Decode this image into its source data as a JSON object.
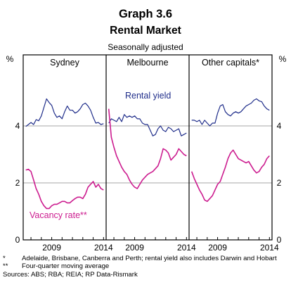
{
  "chart_data": {
    "type": "line",
    "title": "Graph 3.6",
    "subtitle": "Rental Market",
    "note": "Seasonally adjusted",
    "ylabel_left": "%",
    "ylabel_right": "%",
    "ylim": [
      0,
      6
    ],
    "yticks": [
      0,
      2,
      4
    ],
    "grid": true,
    "xlim": [
      2006.25,
      2014.25
    ],
    "xticks": [
      2009,
      2014
    ],
    "xtick_labels": [
      "2009",
      "2014"
    ],
    "panels": [
      {
        "name": "Sydney",
        "series": [
          {
            "name": "Rental yield",
            "color": "#1f2d8a",
            "x": [
              2006.5,
              2006.75,
              2007,
              2007.25,
              2007.5,
              2007.75,
              2008,
              2008.25,
              2008.5,
              2008.75,
              2009,
              2009.25,
              2009.5,
              2009.75,
              2010,
              2010.25,
              2010.5,
              2010.75,
              2011,
              2011.25,
              2011.5,
              2011.75,
              2012,
              2012.25,
              2012.5,
              2012.75,
              2013,
              2013.25,
              2013.5,
              2013.75,
              2014
            ],
            "values": [
              3.98,
              4.05,
              4.12,
              4.05,
              4.22,
              4.18,
              4.35,
              4.65,
              4.95,
              4.82,
              4.72,
              4.45,
              4.3,
              4.35,
              4.25,
              4.5,
              4.7,
              4.55,
              4.55,
              4.45,
              4.5,
              4.6,
              4.75,
              4.8,
              4.7,
              4.55,
              4.3,
              4.1,
              4.12,
              4.05,
              4.08
            ]
          },
          {
            "name": "Vacancy rate",
            "color": "#cc1c8f",
            "x": [
              2006.5,
              2006.75,
              2007,
              2007.25,
              2007.5,
              2007.75,
              2008,
              2008.25,
              2008.5,
              2008.75,
              2009,
              2009.25,
              2009.5,
              2009.75,
              2010,
              2010.25,
              2010.5,
              2010.75,
              2011,
              2011.25,
              2011.5,
              2011.75,
              2012,
              2012.25,
              2012.5,
              2012.75,
              2013,
              2013.25,
              2013.5,
              2013.75,
              2014
            ],
            "values": [
              2.45,
              2.48,
              2.4,
              2.1,
              1.8,
              1.6,
              1.35,
              1.2,
              1.1,
              1.1,
              1.2,
              1.25,
              1.25,
              1.3,
              1.35,
              1.35,
              1.3,
              1.3,
              1.38,
              1.45,
              1.5,
              1.5,
              1.45,
              1.6,
              1.85,
              1.95,
              2.05,
              1.85,
              1.95,
              1.8,
              1.75
            ]
          }
        ]
      },
      {
        "name": "Melbourne",
        "series": [
          {
            "name": "Rental yield",
            "color": "#1f2d8a",
            "x": [
              2006.5,
              2006.75,
              2007,
              2007.25,
              2007.5,
              2007.75,
              2008,
              2008.25,
              2008.5,
              2008.75,
              2009,
              2009.25,
              2009.5,
              2009.75,
              2010,
              2010.25,
              2010.5,
              2010.75,
              2011,
              2011.25,
              2011.5,
              2011.75,
              2012,
              2012.25,
              2012.5,
              2012.75,
              2013,
              2013.25,
              2013.5,
              2013.75,
              2014
            ],
            "values": [
              4.1,
              4.25,
              4.2,
              4.15,
              4.3,
              4.15,
              4.4,
              4.3,
              4.35,
              4.3,
              4.35,
              4.25,
              4.25,
              4.1,
              4.05,
              4.05,
              3.85,
              3.65,
              3.7,
              3.9,
              4.0,
              3.85,
              3.8,
              3.95,
              3.9,
              3.8,
              3.85,
              3.9,
              3.65,
              3.7,
              3.75
            ]
          },
          {
            "name": "Vacancy rate",
            "color": "#cc1c8f",
            "x": [
              2006.5,
              2006.75,
              2007,
              2007.25,
              2007.5,
              2007.75,
              2008,
              2008.25,
              2008.5,
              2008.75,
              2009,
              2009.25,
              2009.5,
              2009.75,
              2010,
              2010.25,
              2010.5,
              2010.75,
              2011,
              2011.25,
              2011.5,
              2011.75,
              2012,
              2012.25,
              2012.5,
              2012.75,
              2013,
              2013.25,
              2013.5,
              2013.75,
              2014
            ],
            "values": [
              4.6,
              3.6,
              3.25,
              2.95,
              2.75,
              2.55,
              2.4,
              2.3,
              2.1,
              1.95,
              1.85,
              1.8,
              1.95,
              2.1,
              2.2,
              2.3,
              2.35,
              2.4,
              2.5,
              2.6,
              2.85,
              3.2,
              3.15,
              3.05,
              2.8,
              2.9,
              3.0,
              3.2,
              3.1,
              3.0,
              2.95
            ]
          }
        ]
      },
      {
        "name": "Other capitals*",
        "series": [
          {
            "name": "Rental yield",
            "color": "#1f2d8a",
            "x": [
              2006.5,
              2006.75,
              2007,
              2007.25,
              2007.5,
              2007.75,
              2008,
              2008.25,
              2008.5,
              2008.75,
              2009,
              2009.25,
              2009.5,
              2009.75,
              2010,
              2010.25,
              2010.5,
              2010.75,
              2011,
              2011.25,
              2011.5,
              2011.75,
              2012,
              2012.25,
              2012.5,
              2012.75,
              2013,
              2013.25,
              2013.5,
              2013.75,
              2014
            ],
            "values": [
              4.2,
              4.2,
              4.15,
              4.2,
              4.05,
              4.2,
              4.1,
              4.0,
              4.1,
              4.1,
              4.45,
              4.7,
              4.75,
              4.5,
              4.4,
              4.35,
              4.45,
              4.5,
              4.45,
              4.5,
              4.6,
              4.7,
              4.75,
              4.8,
              4.9,
              4.95,
              4.88,
              4.85,
              4.7,
              4.6,
              4.55
            ]
          },
          {
            "name": "Vacancy rate",
            "color": "#cc1c8f",
            "x": [
              2006.5,
              2006.75,
              2007,
              2007.25,
              2007.5,
              2007.75,
              2008,
              2008.25,
              2008.5,
              2008.75,
              2009,
              2009.25,
              2009.5,
              2009.75,
              2010,
              2010.25,
              2010.5,
              2010.75,
              2011,
              2011.25,
              2011.5,
              2011.75,
              2012,
              2012.25,
              2012.5,
              2012.75,
              2013,
              2013.25,
              2013.5,
              2013.75,
              2014
            ],
            "values": [
              2.4,
              2.15,
              1.95,
              1.75,
              1.6,
              1.4,
              1.35,
              1.45,
              1.55,
              1.75,
              1.95,
              2.05,
              2.3,
              2.55,
              2.85,
              3.05,
              3.15,
              3.0,
              2.85,
              2.8,
              2.75,
              2.7,
              2.75,
              2.6,
              2.45,
              2.35,
              2.4,
              2.55,
              2.65,
              2.85,
              2.95
            ]
          }
        ]
      }
    ],
    "annotations": [
      {
        "text": "Rental yield",
        "color": "#1f2d8a",
        "panel": 1
      },
      {
        "text": "Vacancy rate**",
        "color": "#cc1c8f",
        "panel": 0
      }
    ],
    "footnotes": [
      {
        "marker": "*",
        "text": "Adelaide, Brisbane, Canberra and Perth; rental yield also includes Darwin and Hobart"
      },
      {
        "marker": "**",
        "text": "Four-quarter moving average"
      },
      {
        "marker": "",
        "text": "Sources: ABS; RBA; REIA; RP Data-Rismark"
      }
    ]
  }
}
